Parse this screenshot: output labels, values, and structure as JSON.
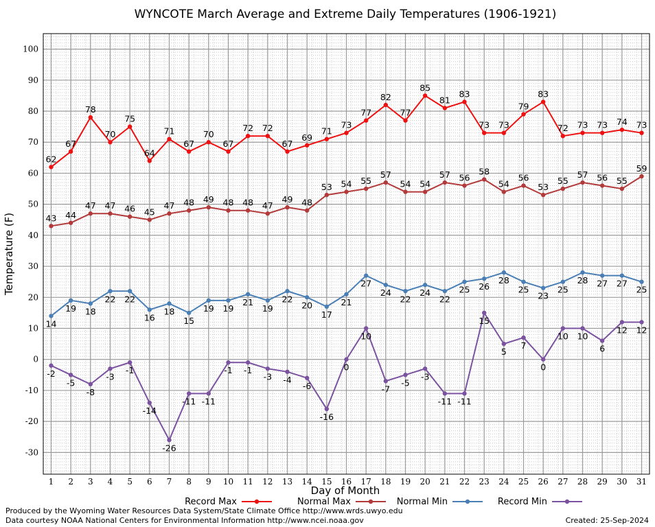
{
  "chart_data": {
    "type": "line",
    "title": "WYNCOTE March Average and Extreme Daily Temperatures (1906-1921)",
    "xlabel": "Day of Month",
    "ylabel": "Temperature (F)",
    "ylim": [
      -37,
      105
    ],
    "yticks": [
      -30,
      -20,
      -10,
      0,
      10,
      20,
      30,
      40,
      50,
      60,
      70,
      80,
      90,
      100
    ],
    "xlim": [
      0.6,
      31.4
    ],
    "grid": true,
    "legend_position": "bottom",
    "x": [
      1,
      2,
      3,
      4,
      5,
      6,
      7,
      8,
      9,
      10,
      11,
      12,
      13,
      14,
      15,
      16,
      17,
      18,
      19,
      20,
      21,
      22,
      23,
      24,
      25,
      26,
      27,
      28,
      29,
      30,
      31
    ],
    "series": [
      {
        "name": "Record Max",
        "color": "#ee1111",
        "label_pos": "above",
        "values": [
          62,
          67,
          78,
          70,
          75,
          64,
          71,
          67,
          70,
          67,
          72,
          72,
          67,
          69,
          71,
          73,
          77,
          82,
          77,
          85,
          81,
          83,
          73,
          73,
          79,
          83,
          72,
          73,
          73,
          74,
          73
        ]
      },
      {
        "name": "Normal Max",
        "color": "#b33a3a",
        "label_pos": "above",
        "values": [
          43,
          44,
          47,
          47,
          46,
          45,
          47,
          48,
          49,
          48,
          48,
          47,
          49,
          48,
          53,
          54,
          55,
          57,
          54,
          54,
          57,
          56,
          58,
          54,
          56,
          53,
          55,
          57,
          56,
          55,
          59
        ]
      },
      {
        "name": "Normal Min",
        "color": "#4a7fb5",
        "label_pos": "below",
        "values": [
          14,
          19,
          18,
          22,
          22,
          16,
          18,
          15,
          19,
          19,
          21,
          19,
          22,
          20,
          17,
          21,
          27,
          24,
          22,
          24,
          22,
          25,
          26,
          28,
          25,
          23,
          25,
          28,
          27,
          27,
          25
        ]
      },
      {
        "name": "Record Min",
        "color": "#7b52a0",
        "label_pos": "below",
        "values": [
          -2,
          -5,
          -8,
          -3,
          -1,
          -14,
          -26,
          -11,
          -11,
          -1,
          -1,
          -3,
          -4,
          -6,
          -16,
          0,
          10,
          -7,
          -5,
          -3,
          -11,
          -11,
          15,
          5,
          7,
          0,
          10,
          10,
          6,
          12,
          12
        ]
      }
    ]
  },
  "footer": {
    "produced_by": "Produced by the Wyoming Water Resources Data System/State Climate Office http://www.wrds.uwyo.edu",
    "data_courtesy": "Data courtesy NOAA National Centers for Environmental Information http://www.ncei.noaa.gov",
    "created": "Created: 25-Sep-2024"
  }
}
